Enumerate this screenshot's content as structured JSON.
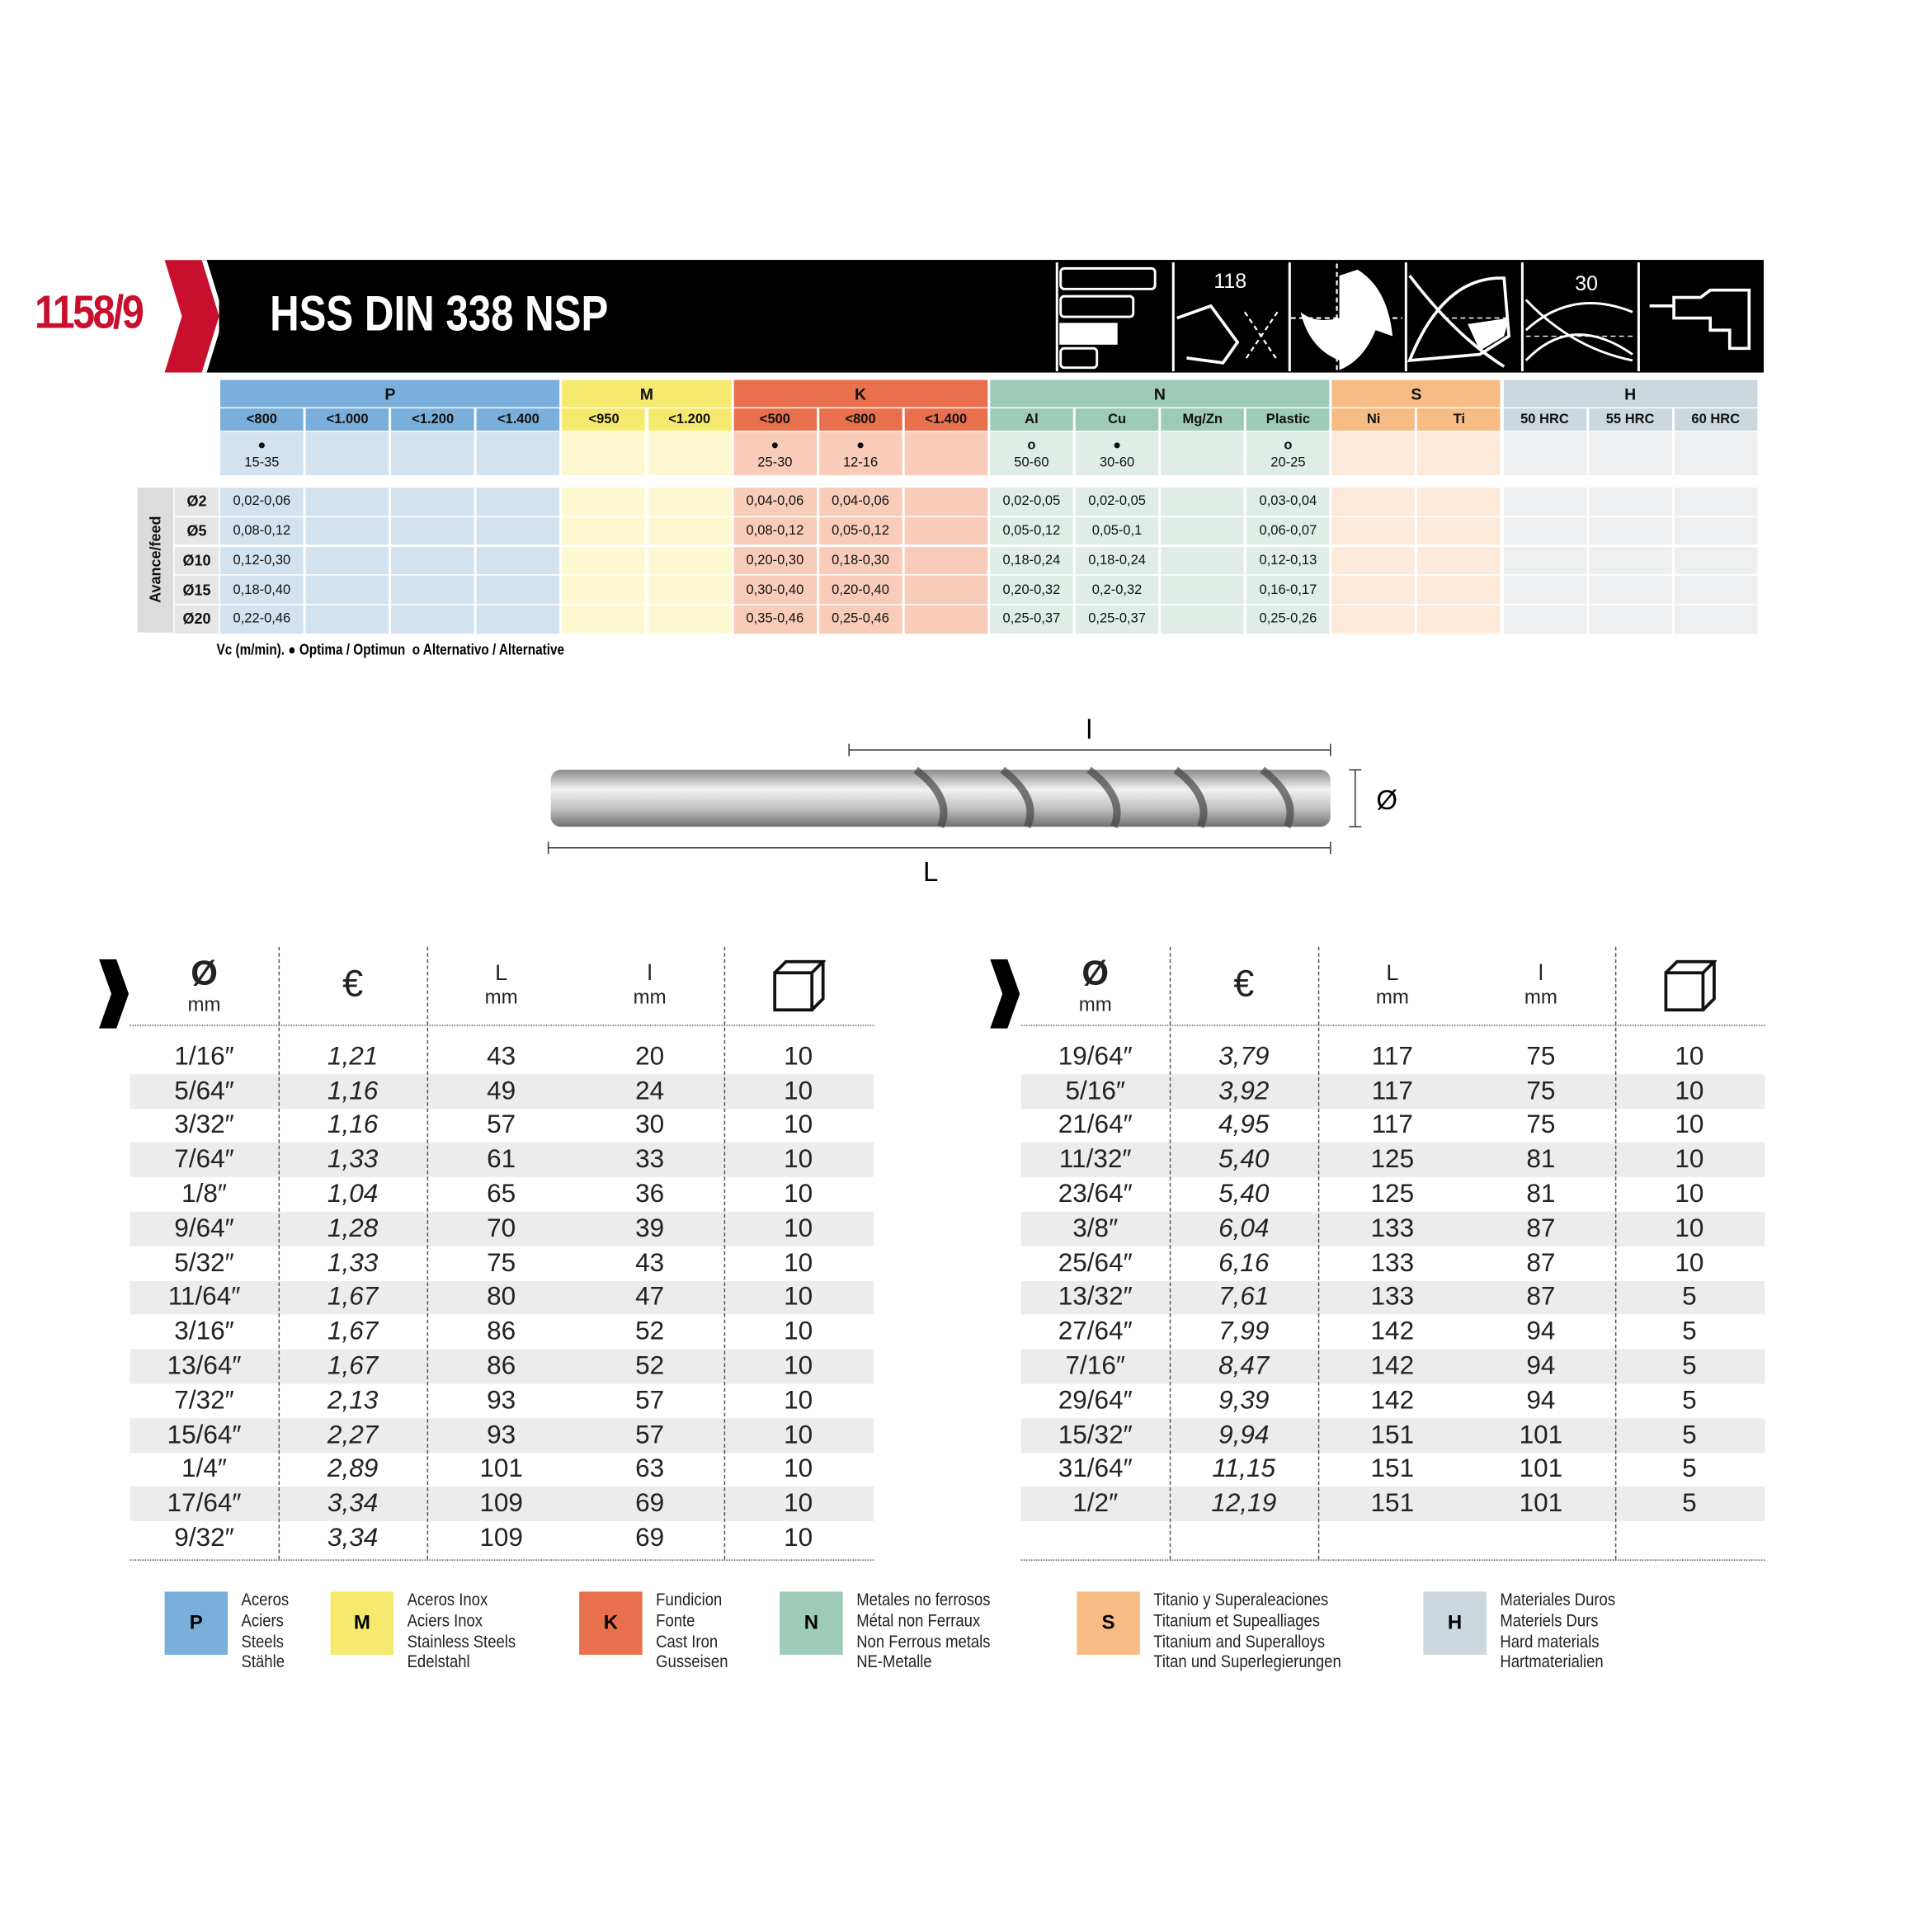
{
  "header": {
    "code": "1158/9",
    "title": "HSS DIN 338 NSP",
    "icons": [
      "shank-lengths-icon",
      "point-angle-icon",
      "split-point-icon",
      "web-thinning-icon",
      "helix-angle-icon",
      "drill-machine-icon"
    ],
    "icon_labels": {
      "point_angle": "118",
      "helix_angle": "30"
    },
    "brand_color": "#c8102e"
  },
  "materials": {
    "groups": [
      {
        "letter": "P",
        "color": "#7aaedb",
        "light": "#d3e2ef",
        "cols": [
          "<800",
          "<1.000",
          "<1.200",
          "<1.400"
        ]
      },
      {
        "letter": "M",
        "color": "#f6ea6e",
        "light": "#fdf8cf",
        "cols": [
          "<950",
          "<1.200"
        ]
      },
      {
        "letter": "K",
        "color": "#e8704d",
        "light": "#f8ccb9",
        "cols": [
          "<500",
          "<800",
          "<1.400"
        ]
      },
      {
        "letter": "N",
        "color": "#9ecab8",
        "light": "#e0ede7",
        "cols": [
          "Al",
          "Cu",
          "Mg/Zn",
          "Plastic"
        ]
      },
      {
        "letter": "S",
        "color": "#f6bc84",
        "light": "#fdeadb",
        "cols": [
          "Ni",
          "Ti"
        ]
      },
      {
        "letter": "H",
        "color": "#cdd7de",
        "light": "#edeff0",
        "cols": [
          "50 HRC",
          "55 HRC",
          "60 HRC"
        ]
      }
    ],
    "vc": [
      {
        "mark": "optimal",
        "value": "15-35"
      },
      null,
      null,
      null,
      null,
      null,
      {
        "mark": "optimal",
        "value": "25-30"
      },
      {
        "mark": "optimal",
        "value": "12-16"
      },
      null,
      {
        "mark": "alternative",
        "value": "50-60"
      },
      {
        "mark": "optimal",
        "value": "30-60"
      },
      null,
      {
        "mark": "alternative",
        "value": "20-25"
      },
      null,
      null,
      null,
      null,
      null
    ],
    "feed_label": "Avance/feed",
    "feed_rows": [
      {
        "d": "Ø2",
        "vals": [
          "0,02-0,06",
          "",
          "",
          "",
          "",
          "",
          "0,04-0,06",
          "0,04-0,06",
          "",
          "0,02-0,05",
          "0,02-0,05",
          "",
          "0,03-0,04",
          "",
          "",
          "",
          "",
          ""
        ]
      },
      {
        "d": "Ø5",
        "vals": [
          "0,08-0,12",
          "",
          "",
          "",
          "",
          "",
          "0,08-0,12",
          "0,05-0,12",
          "",
          "0,05-0,12",
          "0,05-0,1",
          "",
          "0,06-0,07",
          "",
          "",
          "",
          "",
          ""
        ]
      },
      {
        "d": "Ø10",
        "vals": [
          "0,12-0,30",
          "",
          "",
          "",
          "",
          "",
          "0,20-0,30",
          "0,18-0,30",
          "",
          "0,18-0,24",
          "0,18-0,24",
          "",
          "0,12-0,13",
          "",
          "",
          "",
          "",
          ""
        ]
      },
      {
        "d": "Ø15",
        "vals": [
          "0,18-0,40",
          "",
          "",
          "",
          "",
          "",
          "0,30-0,40",
          "0,20-0,40",
          "",
          "0,20-0,32",
          "0,2-0,32",
          "",
          "0,16-0,17",
          "",
          "",
          "",
          "",
          ""
        ]
      },
      {
        "d": "Ø20",
        "vals": [
          "0,22-0,46",
          "",
          "",
          "",
          "",
          "",
          "0,35-0,46",
          "0,25-0,46",
          "",
          "0,25-0,37",
          "0,25-0,37",
          "",
          "0,25-0,26",
          "",
          "",
          "",
          "",
          ""
        ]
      }
    ],
    "legend": {
      "prefix": "Vc (m/min).",
      "optimal": "Optima / Optimun",
      "alternative": "Alternativo / Alternative"
    }
  },
  "drill": {
    "l_label": "l",
    "L_label": "L",
    "d_label": "Ø"
  },
  "product_table": {
    "headers": [
      {
        "top": "Ø",
        "bottom": "mm"
      },
      {
        "top": "€",
        "bottom": ""
      },
      {
        "top": "L",
        "bottom": "mm"
      },
      {
        "top": "l",
        "bottom": "mm"
      },
      {
        "icon": "package-box-icon"
      }
    ],
    "left": [
      [
        "1/16″",
        "1,21",
        "43",
        "20",
        "10"
      ],
      [
        "5/64″",
        "1,16",
        "49",
        "24",
        "10"
      ],
      [
        "3/32″",
        "1,16",
        "57",
        "30",
        "10"
      ],
      [
        "7/64″",
        "1,33",
        "61",
        "33",
        "10"
      ],
      [
        "1/8″",
        "1,04",
        "65",
        "36",
        "10"
      ],
      [
        "9/64″",
        "1,28",
        "70",
        "39",
        "10"
      ],
      [
        "5/32″",
        "1,33",
        "75",
        "43",
        "10"
      ],
      [
        "11/64″",
        "1,67",
        "80",
        "47",
        "10"
      ],
      [
        "3/16″",
        "1,67",
        "86",
        "52",
        "10"
      ],
      [
        "13/64″",
        "1,67",
        "86",
        "52",
        "10"
      ],
      [
        "7/32″",
        "2,13",
        "93",
        "57",
        "10"
      ],
      [
        "15/64″",
        "2,27",
        "93",
        "57",
        "10"
      ],
      [
        "1/4″",
        "2,89",
        "101",
        "63",
        "10"
      ],
      [
        "17/64″",
        "3,34",
        "109",
        "69",
        "10"
      ],
      [
        "9/32″",
        "3,34",
        "109",
        "69",
        "10"
      ]
    ],
    "right": [
      [
        "19/64″",
        "3,79",
        "117",
        "75",
        "10"
      ],
      [
        "5/16″",
        "3,92",
        "117",
        "75",
        "10"
      ],
      [
        "21/64″",
        "4,95",
        "117",
        "75",
        "10"
      ],
      [
        "11/32″",
        "5,40",
        "125",
        "81",
        "10"
      ],
      [
        "23/64″",
        "5,40",
        "125",
        "81",
        "10"
      ],
      [
        "3/8″",
        "6,04",
        "133",
        "87",
        "10"
      ],
      [
        "25/64″",
        "6,16",
        "133",
        "87",
        "10"
      ],
      [
        "13/32″",
        "7,61",
        "133",
        "87",
        "5"
      ],
      [
        "27/64″",
        "7,99",
        "142",
        "94",
        "5"
      ],
      [
        "7/16″",
        "8,47",
        "142",
        "94",
        "5"
      ],
      [
        "29/64″",
        "9,39",
        "142",
        "94",
        "5"
      ],
      [
        "15/32″",
        "9,94",
        "151",
        "101",
        "5"
      ],
      [
        "31/64″",
        "11,15",
        "151",
        "101",
        "5"
      ],
      [
        "1/2″",
        "12,19",
        "151",
        "101",
        "5"
      ]
    ]
  },
  "material_legend": [
    {
      "letter": "P",
      "color": "#7aaedb",
      "lines": [
        "Aceros",
        "Aciers",
        "Steels",
        "Stähle"
      ]
    },
    {
      "letter": "M",
      "color": "#f6ea6e",
      "lines": [
        "Aceros Inox",
        "Aciers Inox",
        "Stainless Steels",
        "Edelstahl"
      ]
    },
    {
      "letter": "K",
      "color": "#e8704d",
      "lines": [
        "Fundicion",
        "Fonte",
        "Cast Iron",
        "Gusseisen"
      ]
    },
    {
      "letter": "N",
      "color": "#9ecab8",
      "lines": [
        "Metales no ferrosos",
        "Métal non Ferraux",
        "Non Ferrous metals",
        "NE-Metalle"
      ]
    },
    {
      "letter": "S",
      "color": "#f6bc84",
      "lines": [
        "Titanio y Superaleaciones",
        "Titanium et Supealliages",
        "Titanium and Superalloys",
        "Titan und Superlegierungen"
      ]
    },
    {
      "letter": "H",
      "color": "#cdd7de",
      "lines": [
        "Materiales Duros",
        "Materiels Durs",
        "Hard materials",
        "Hartmaterialien"
      ]
    }
  ]
}
